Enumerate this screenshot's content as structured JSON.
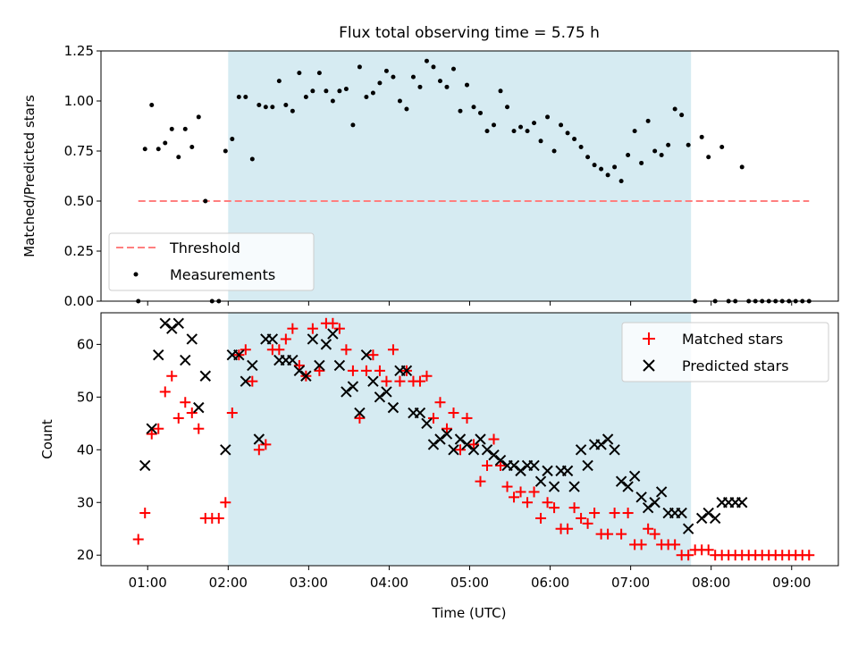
{
  "chart_data": [
    {
      "type": "scatter",
      "title": "Flux total observing time = 5.75 h",
      "xlabel": "",
      "ylabel": "Matched/Predicted stars",
      "ylim": [
        0,
        1.25
      ],
      "yticks": [
        "0.00",
        "0.25",
        "0.50",
        "0.75",
        "1.00",
        "1.25"
      ],
      "shaded_span": {
        "start": "02:00",
        "end": "07:45",
        "color": "#add8e6"
      },
      "threshold": {
        "name": "Threshold",
        "value": 0.5,
        "color": "#ff7f7f",
        "style": "dashed"
      },
      "legend": {
        "position": "lower-left",
        "entries": [
          "Threshold",
          "Measurements"
        ]
      },
      "series": [
        {
          "name": "Measurements",
          "color": "#000000",
          "marker": "dot",
          "x": [
            "00:53",
            "00:58",
            "01:03",
            "01:08",
            "01:13",
            "01:18",
            "01:23",
            "01:28",
            "01:33",
            "01:38",
            "01:43",
            "01:48",
            "01:53",
            "01:58",
            "02:03",
            "02:08",
            "02:13",
            "02:18",
            "02:23",
            "02:28",
            "02:33",
            "02:38",
            "02:43",
            "02:48",
            "02:53",
            "02:58",
            "03:03",
            "03:08",
            "03:13",
            "03:18",
            "03:23",
            "03:28",
            "03:33",
            "03:38",
            "03:43",
            "03:48",
            "03:53",
            "03:58",
            "04:03",
            "04:08",
            "04:13",
            "04:18",
            "04:23",
            "04:28",
            "04:33",
            "04:38",
            "04:43",
            "04:48",
            "04:53",
            "04:58",
            "05:03",
            "05:08",
            "05:13",
            "05:18",
            "05:23",
            "05:28",
            "05:33",
            "05:38",
            "05:43",
            "05:48",
            "05:53",
            "05:58",
            "06:03",
            "06:08",
            "06:13",
            "06:18",
            "06:23",
            "06:28",
            "06:33",
            "06:38",
            "06:43",
            "06:48",
            "06:53",
            "06:58",
            "07:03",
            "07:08",
            "07:13",
            "07:18",
            "07:23",
            "07:28",
            "07:33",
            "07:38",
            "07:43",
            "07:48",
            "07:53",
            "07:58",
            "08:03",
            "08:08",
            "08:13",
            "08:18",
            "08:23",
            "08:28",
            "08:33",
            "08:38",
            "08:43",
            "08:48",
            "08:53",
            "08:58",
            "09:03",
            "09:08",
            "09:13"
          ],
          "y": [
            0.0,
            0.76,
            0.98,
            0.76,
            0.79,
            0.86,
            0.72,
            0.86,
            0.77,
            0.92,
            0.5,
            0.0,
            0.0,
            0.75,
            0.81,
            1.02,
            1.02,
            0.71,
            0.98,
            0.97,
            0.97,
            1.1,
            0.98,
            0.95,
            1.14,
            1.02,
            1.05,
            1.14,
            1.05,
            1.0,
            1.05,
            1.06,
            0.88,
            1.17,
            1.02,
            1.04,
            1.09,
            1.15,
            1.12,
            1.0,
            0.96,
            1.12,
            1.07,
            1.2,
            1.17,
            1.1,
            1.07,
            1.16,
            0.95,
            1.08,
            0.97,
            0.94,
            0.85,
            0.88,
            1.05,
            0.97,
            0.85,
            0.87,
            0.85,
            0.89,
            0.8,
            0.92,
            0.75,
            0.88,
            0.84,
            0.81,
            0.77,
            0.72,
            0.68,
            0.66,
            0.63,
            0.67,
            0.6,
            0.73,
            0.85,
            0.69,
            0.9,
            0.75,
            0.73,
            0.78,
            0.96,
            0.93,
            0.78,
            0.0,
            0.82,
            0.72,
            0.0,
            0.77,
            0.0,
            0.0,
            0.67,
            0.0,
            0.0,
            0.0,
            0.0,
            0.0,
            0.0,
            0.0,
            0.0,
            0.0,
            0.0
          ]
        }
      ]
    },
    {
      "type": "scatter",
      "title": "",
      "xlabel": "Time (UTC)",
      "ylabel": "Count",
      "ylim": [
        18,
        66
      ],
      "yticks": [
        "20",
        "30",
        "40",
        "50",
        "60"
      ],
      "xticks": [
        "01:00",
        "02:00",
        "03:00",
        "04:00",
        "05:00",
        "06:00",
        "07:00",
        "08:00",
        "09:00"
      ],
      "shaded_span": {
        "start": "02:00",
        "end": "07:45",
        "color": "#add8e6"
      },
      "legend": {
        "position": "top-right",
        "entries": [
          "Matched stars",
          "Predicted stars"
        ]
      },
      "series": [
        {
          "name": "Matched stars",
          "color": "#ff0000",
          "marker": "plus",
          "x": [
            "00:53",
            "00:58",
            "01:03",
            "01:08",
            "01:13",
            "01:18",
            "01:23",
            "01:28",
            "01:33",
            "01:38",
            "01:43",
            "01:48",
            "01:53",
            "01:58",
            "02:03",
            "02:08",
            "02:13",
            "02:18",
            "02:23",
            "02:28",
            "02:33",
            "02:38",
            "02:43",
            "02:48",
            "02:53",
            "02:58",
            "03:03",
            "03:08",
            "03:13",
            "03:18",
            "03:23",
            "03:28",
            "03:33",
            "03:38",
            "03:43",
            "03:48",
            "03:53",
            "03:58",
            "04:03",
            "04:08",
            "04:13",
            "04:18",
            "04:23",
            "04:28",
            "04:33",
            "04:38",
            "04:43",
            "04:48",
            "04:53",
            "04:58",
            "05:03",
            "05:08",
            "05:13",
            "05:18",
            "05:23",
            "05:28",
            "05:33",
            "05:38",
            "05:43",
            "05:48",
            "05:53",
            "05:58",
            "06:03",
            "06:08",
            "06:13",
            "06:18",
            "06:23",
            "06:28",
            "06:33",
            "06:38",
            "06:43",
            "06:48",
            "06:53",
            "06:58",
            "07:03",
            "07:08",
            "07:13",
            "07:18",
            "07:23",
            "07:28",
            "07:33",
            "07:38",
            "07:43",
            "07:48",
            "07:53",
            "07:58",
            "08:03",
            "08:08",
            "08:13",
            "08:18",
            "08:23",
            "08:28",
            "08:33",
            "08:38",
            "08:43",
            "08:48",
            "08:53",
            "08:58",
            "09:03",
            "09:08",
            "09:13"
          ],
          "y": [
            23,
            28,
            43,
            44,
            51,
            54,
            46,
            49,
            47,
            44,
            27,
            27,
            27,
            30,
            47,
            58,
            59,
            53,
            40,
            41,
            59,
            59,
            61,
            63,
            56,
            54,
            63,
            55,
            64,
            64,
            63,
            59,
            55,
            46,
            55,
            58,
            55,
            53,
            59,
            53,
            55,
            53,
            53,
            54,
            46,
            49,
            44,
            47,
            40,
            46,
            41,
            34,
            37,
            42,
            37,
            33,
            31,
            32,
            30,
            32,
            27,
            30,
            29,
            25,
            25,
            29,
            27,
            26,
            28,
            24,
            24,
            28,
            24,
            28,
            22,
            22,
            25,
            24,
            22,
            22,
            22,
            20,
            20,
            21,
            21,
            21,
            20,
            20,
            20,
            20,
            20,
            20,
            20,
            20,
            20,
            20,
            20,
            20,
            20,
            20,
            20
          ]
        },
        {
          "name": "Predicted stars",
          "color": "#000000",
          "marker": "x",
          "x": [
            "00:58",
            "01:03",
            "01:08",
            "01:13",
            "01:18",
            "01:23",
            "01:28",
            "01:33",
            "01:38",
            "01:43",
            "01:58",
            "02:03",
            "02:08",
            "02:13",
            "02:18",
            "02:23",
            "02:28",
            "02:33",
            "02:38",
            "02:43",
            "02:48",
            "02:53",
            "02:58",
            "03:03",
            "03:08",
            "03:13",
            "03:18",
            "03:23",
            "03:28",
            "03:33",
            "03:38",
            "03:43",
            "03:48",
            "03:53",
            "03:58",
            "04:03",
            "04:08",
            "04:13",
            "04:18",
            "04:23",
            "04:28",
            "04:33",
            "04:38",
            "04:43",
            "04:48",
            "04:53",
            "04:58",
            "05:03",
            "05:08",
            "05:13",
            "05:18",
            "05:23",
            "05:28",
            "05:33",
            "05:38",
            "05:43",
            "05:48",
            "05:53",
            "05:58",
            "06:03",
            "06:08",
            "06:13",
            "06:18",
            "06:23",
            "06:28",
            "06:33",
            "06:38",
            "06:43",
            "06:48",
            "06:53",
            "06:58",
            "07:03",
            "07:08",
            "07:13",
            "07:18",
            "07:23",
            "07:28",
            "07:33",
            "07:38",
            "07:43",
            "07:53",
            "07:58",
            "08:03",
            "08:08",
            "08:13",
            "08:18",
            "08:23"
          ],
          "y": [
            37,
            44,
            58,
            64,
            63,
            64,
            57,
            61,
            48,
            54,
            40,
            58,
            58,
            53,
            56,
            42,
            61,
            61,
            57,
            57,
            57,
            55,
            54,
            61,
            56,
            60,
            62,
            56,
            51,
            52,
            47,
            58,
            53,
            50,
            51,
            48,
            55,
            55,
            47,
            47,
            45,
            41,
            42,
            43,
            40,
            42,
            41,
            40,
            42,
            40,
            39,
            38,
            37,
            37,
            36,
            37,
            37,
            34,
            36,
            33,
            36,
            36,
            33,
            40,
            37,
            41,
            41,
            42,
            40,
            34,
            33,
            35,
            31,
            29,
            30,
            32,
            28,
            28,
            28,
            25,
            27,
            28,
            27,
            30,
            30,
            30,
            30
          ]
        }
      ]
    }
  ]
}
